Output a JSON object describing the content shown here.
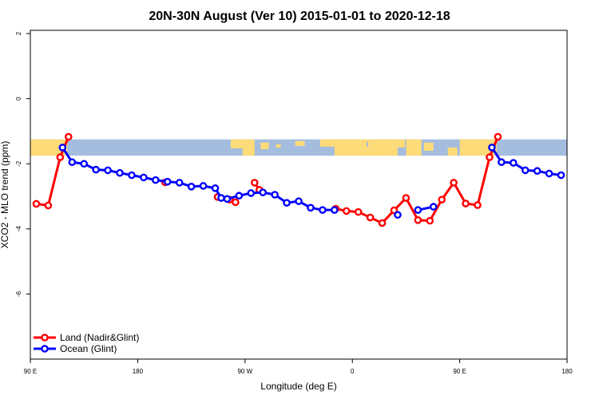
{
  "chart_data": {
    "type": "line",
    "title": "20N-30N August (Ver 10)   2015-01-01 to 2020-12-18",
    "xlabel": "Longitude (deg E)",
    "ylabel": "XCO2 - MLO trend (ppm)",
    "x_ticks": [
      {
        "value": 90,
        "label": "90 E"
      },
      {
        "value": 180,
        "label": "180"
      },
      {
        "value": 270,
        "label": "90 W"
      },
      {
        "value": 360,
        "label": "0"
      },
      {
        "value": 450,
        "label": "90 E"
      },
      {
        "value": 540,
        "label": "180"
      }
    ],
    "y_ticks": [
      {
        "value": 2,
        "label": "2"
      },
      {
        "value": 0,
        "label": "0"
      },
      {
        "value": -2,
        "label": "-2"
      },
      {
        "value": -4,
        "label": "-4"
      },
      {
        "value": -6,
        "label": "-6"
      }
    ],
    "xlim": [
      90,
      540
    ],
    "ylim": [
      -8,
      2.1
    ],
    "grid": false,
    "legend_position": "bottom-left",
    "map_strip": {
      "ylim": [
        -1.75,
        -1.25
      ],
      "ocean_color": "#A4BCDE",
      "land_color": "#FCDB78"
    },
    "series": [
      {
        "name": "Land (Nadir&Glint)",
        "color": "#FF0000",
        "points": [
          {
            "x": 95,
            "y": -3.23
          },
          {
            "x": 105,
            "y": -3.28
          },
          {
            "x": 115,
            "y": -1.8
          },
          {
            "x": 122,
            "y": -1.17
          },
          null,
          {
            "x": 203,
            "y": -2.57
          },
          null,
          {
            "x": 247,
            "y": -3.02
          },
          {
            "x": 257,
            "y": -3.1
          },
          {
            "x": 262,
            "y": -3.18
          },
          null,
          {
            "x": 278,
            "y": -2.58
          },
          {
            "x": 282,
            "y": -2.8
          },
          null,
          {
            "x": 346,
            "y": -3.38
          },
          {
            "x": 355,
            "y": -3.45
          },
          {
            "x": 365,
            "y": -3.48
          },
          {
            "x": 375,
            "y": -3.65
          },
          {
            "x": 385,
            "y": -3.82
          },
          {
            "x": 395,
            "y": -3.43
          },
          {
            "x": 405,
            "y": -3.05
          },
          {
            "x": 415,
            "y": -3.73
          },
          {
            "x": 425,
            "y": -3.75
          },
          {
            "x": 435,
            "y": -3.1
          },
          {
            "x": 445,
            "y": -2.58
          },
          {
            "x": 455,
            "y": -3.22
          },
          {
            "x": 465,
            "y": -3.27
          },
          {
            "x": 475,
            "y": -1.8
          },
          {
            "x": 482,
            "y": -1.17
          }
        ]
      },
      {
        "name": "Ocean (Glint)",
        "color": "#0000FF",
        "points": [
          {
            "x": 117,
            "y": -1.5
          },
          {
            "x": 125,
            "y": -1.95
          },
          {
            "x": 135,
            "y": -2.0
          },
          {
            "x": 145,
            "y": -2.18
          },
          {
            "x": 155,
            "y": -2.2
          },
          {
            "x": 165,
            "y": -2.28
          },
          {
            "x": 175,
            "y": -2.35
          },
          {
            "x": 185,
            "y": -2.42
          },
          {
            "x": 195,
            "y": -2.5
          },
          {
            "x": 205,
            "y": -2.55
          },
          {
            "x": 215,
            "y": -2.58
          },
          {
            "x": 225,
            "y": -2.7
          },
          {
            "x": 235,
            "y": -2.68
          },
          {
            "x": 245,
            "y": -2.75
          },
          {
            "x": 250,
            "y": -3.05
          },
          {
            "x": 255,
            "y": -3.08
          },
          {
            "x": 265,
            "y": -2.98
          },
          {
            "x": 275,
            "y": -2.9
          },
          {
            "x": 285,
            "y": -2.88
          },
          {
            "x": 295,
            "y": -2.95
          },
          {
            "x": 305,
            "y": -3.2
          },
          {
            "x": 315,
            "y": -3.15
          },
          {
            "x": 325,
            "y": -3.35
          },
          {
            "x": 335,
            "y": -3.42
          },
          {
            "x": 345,
            "y": -3.42
          },
          null,
          {
            "x": 398,
            "y": -3.57
          },
          null,
          {
            "x": 415,
            "y": -3.42
          },
          {
            "x": 428,
            "y": -3.32
          },
          null,
          {
            "x": 477,
            "y": -1.5
          },
          {
            "x": 485,
            "y": -1.95
          },
          {
            "x": 495,
            "y": -1.97
          },
          {
            "x": 505,
            "y": -2.2
          },
          {
            "x": 515,
            "y": -2.22
          },
          {
            "x": 525,
            "y": -2.3
          },
          {
            "x": 535,
            "y": -2.35
          }
        ]
      }
    ]
  }
}
